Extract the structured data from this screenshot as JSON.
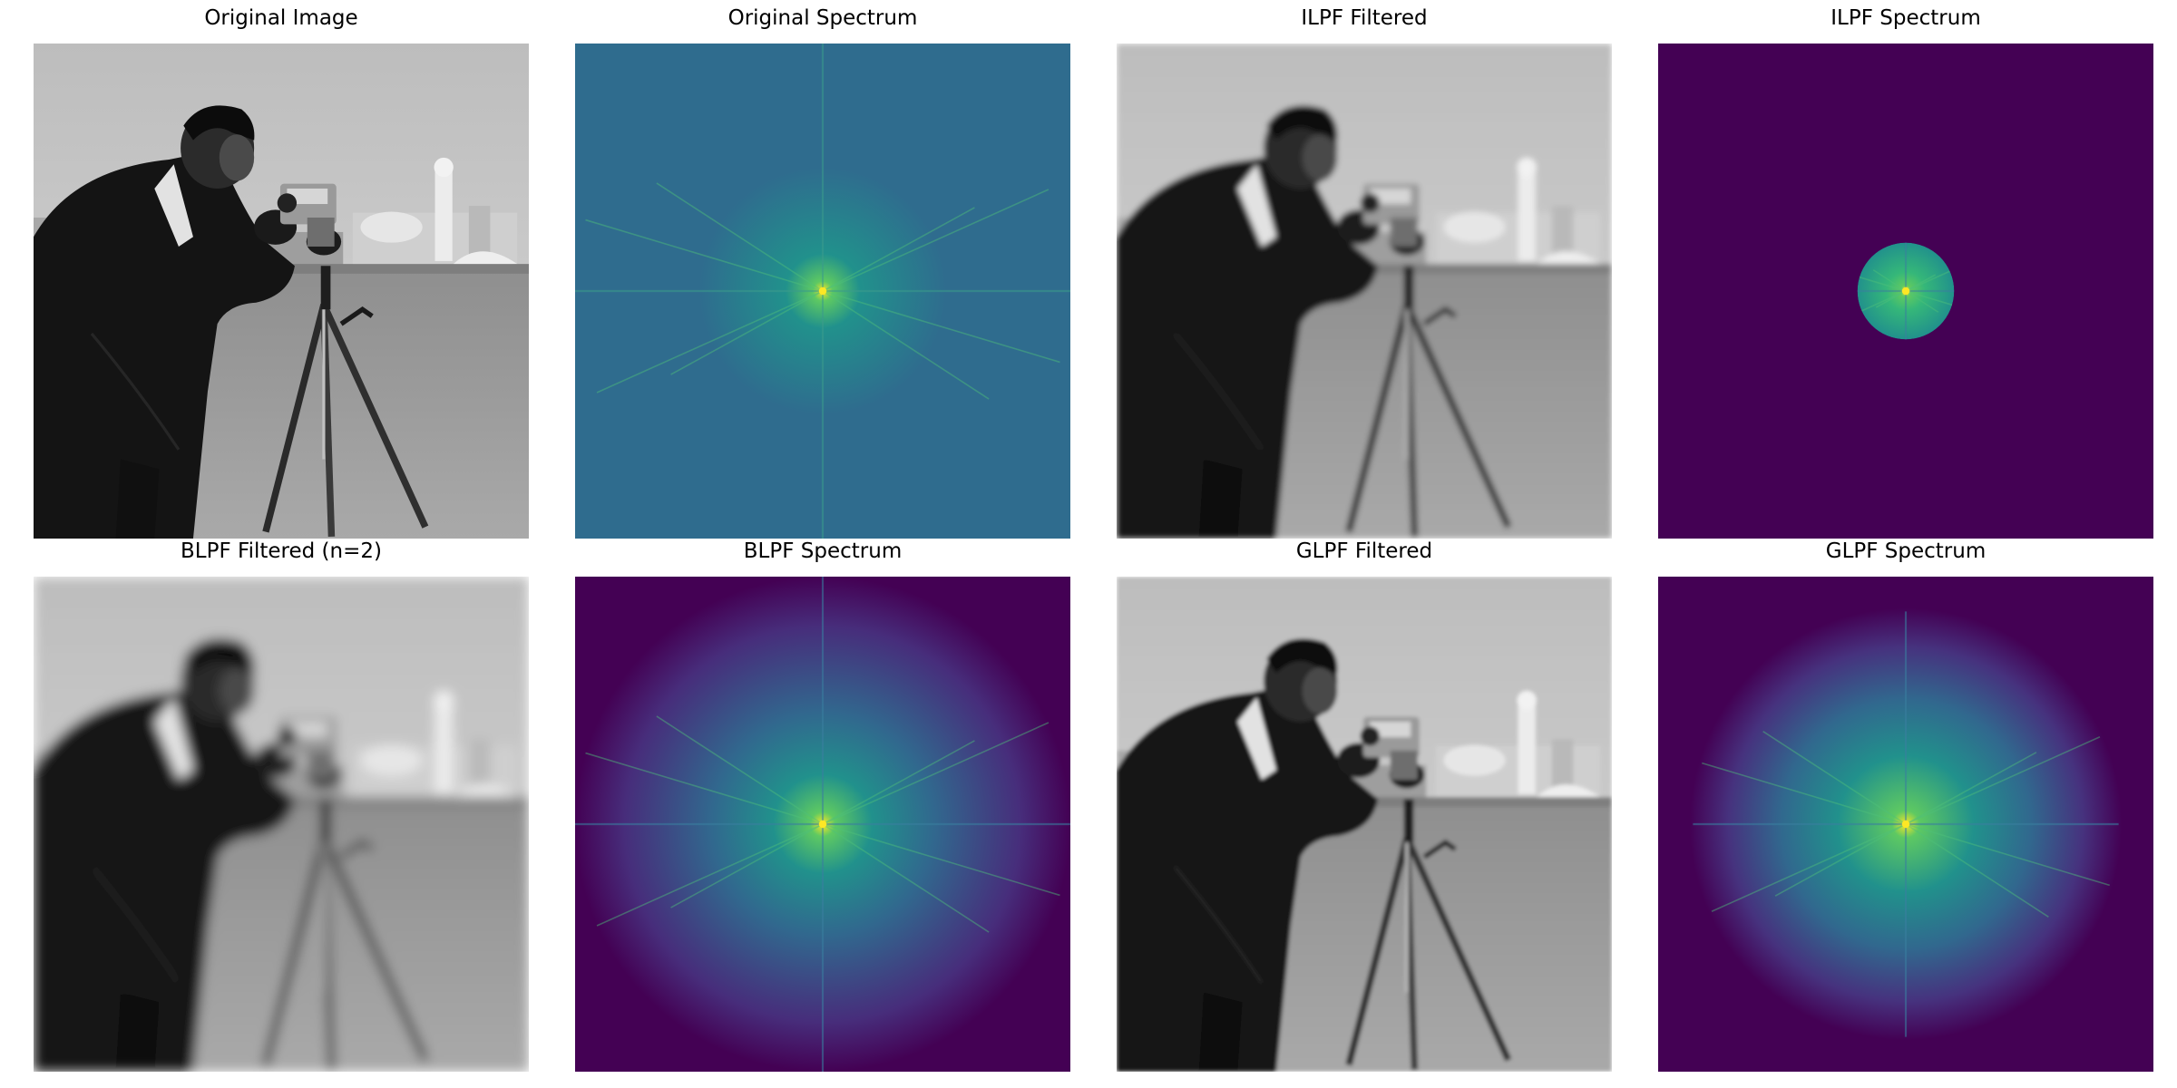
{
  "panels": [
    {
      "title": "Original Image",
      "kind": "photo",
      "blur": 0
    },
    {
      "title": "Original Spectrum",
      "kind": "spectrum-full"
    },
    {
      "title": "ILPF Filtered",
      "kind": "photo",
      "blur": 3
    },
    {
      "title": "ILPF Spectrum",
      "kind": "spectrum-ideal"
    },
    {
      "title": "BLPF Filtered (n=2)",
      "kind": "photo",
      "blur": 6
    },
    {
      "title": "BLPF Spectrum",
      "kind": "spectrum-butterworth"
    },
    {
      "title": "GLPF Filtered",
      "kind": "photo",
      "blur": 2
    },
    {
      "title": "GLPF Spectrum",
      "kind": "spectrum-gaussian"
    }
  ],
  "colors": {
    "viridis_dark": "#440154",
    "viridis_blue": "#2f6c8e",
    "viridis_teal": "#21918c",
    "viridis_green": "#35b779",
    "viridis_yellow": "#fde725"
  }
}
